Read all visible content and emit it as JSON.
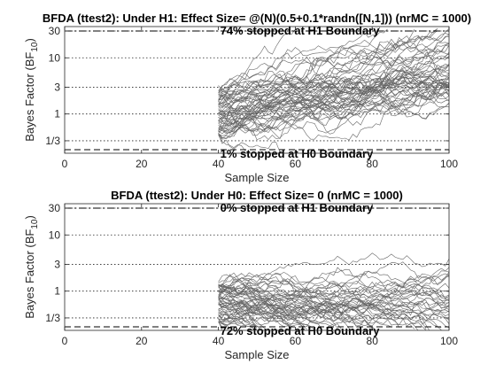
{
  "chart_data": [
    {
      "type": "line",
      "title": "BFDA (ttest2): Under H1: Effect Size= @(N)(0.5+0.1*randn([N,1])) (nrMC = 1000)",
      "xlabel": "Sample Size",
      "ylabel_main": "Bayes Factor (BF",
      "ylabel_sub": "10",
      "ylabel_end": ")",
      "xlim": [
        0,
        100
      ],
      "ylim": [
        0.2,
        36
      ],
      "y_scale": "log",
      "xticks": [
        0,
        20,
        40,
        60,
        80,
        100
      ],
      "xtick_labels": [
        "0",
        "20",
        "40",
        "60",
        "80",
        "100"
      ],
      "yticks": [
        0.3333,
        1,
        3,
        10,
        30
      ],
      "ytick_labels": [
        "1/3",
        "1",
        "3",
        "10",
        "30"
      ],
      "grid": "dotted horizontal at y ticks",
      "h1_boundary": 30,
      "h0_boundary": 0.2308,
      "annotation_h1": "74% stopped at H1 Boundary",
      "annotation_h0": "1% stopped at H0 Boundary",
      "trajectories": {
        "count": 60,
        "start_n": 40,
        "end_n": 100,
        "start_logbf_range": [
          -0.9,
          1.2
        ],
        "drift_per_step": 0.03,
        "noise": 0.14,
        "color": "#666666"
      }
    },
    {
      "type": "line",
      "title": "BFDA (ttest2): Under H0: Effect Size= 0 (nrMC = 1000)",
      "xlabel": "Sample Size",
      "ylabel_main": "Bayes Factor (BF",
      "ylabel_sub": "10",
      "ylabel_end": ")",
      "xlim": [
        0,
        100
      ],
      "ylim": [
        0.2,
        36
      ],
      "y_scale": "log",
      "xticks": [
        0,
        20,
        40,
        60,
        80,
        100
      ],
      "xtick_labels": [
        "0",
        "20",
        "40",
        "60",
        "80",
        "100"
      ],
      "yticks": [
        0.3333,
        1,
        3,
        10,
        30
      ],
      "ytick_labels": [
        "1/3",
        "1",
        "3",
        "10",
        "30"
      ],
      "grid": "dotted horizontal at y ticks",
      "h1_boundary": 30,
      "h0_boundary": 0.2308,
      "annotation_h1": "0% stopped at H1 Boundary",
      "annotation_h0": "72% stopped at H0 Boundary",
      "trajectories": {
        "count": 60,
        "start_n": 40,
        "end_n": 100,
        "start_logbf_range": [
          -1.3,
          0.4
        ],
        "drift_per_step": -0.01,
        "noise": 0.12,
        "color": "#666666"
      }
    }
  ]
}
